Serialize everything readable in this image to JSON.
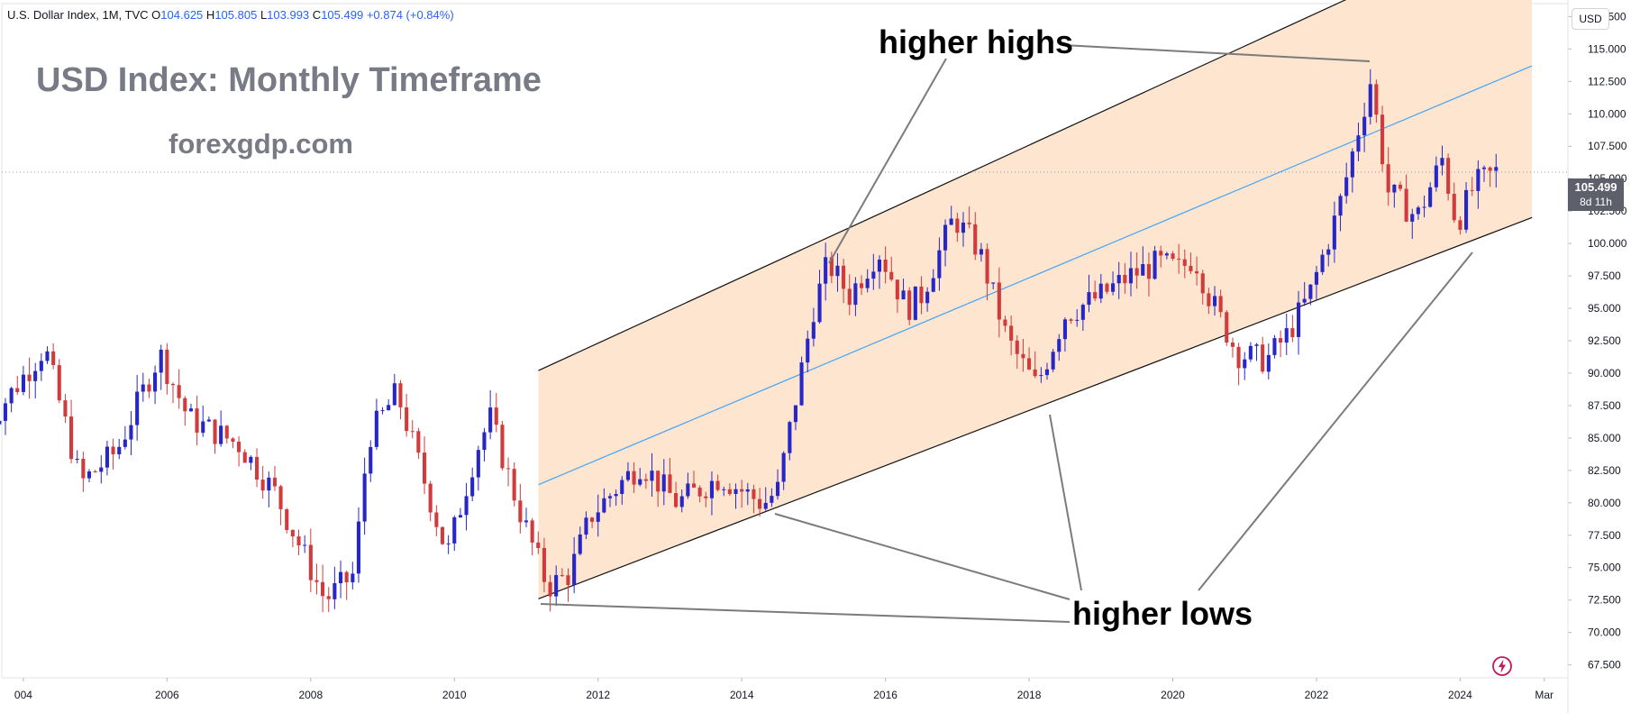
{
  "header": {
    "instrument": "U.S. Dollar Index, 1M, TVC",
    "o_label": "O",
    "o_value": "104.625",
    "h_label": "H",
    "h_value": "105.805",
    "l_label": "L",
    "l_value": "103.993",
    "c_label": "C",
    "c_value": "105.499",
    "change": "+0.874 (+0.84%)"
  },
  "overlay": {
    "title": "USD Index: Monthly Timeframe",
    "site": "forexgdp.com",
    "higher_highs": "higher highs",
    "higher_lows": "higher lows"
  },
  "price_scale": {
    "currency": "USD",
    "last_price": "105.499",
    "countdown": "8d 11h"
  },
  "colors": {
    "up": "#2727c8",
    "down": "#d23b3b",
    "channel_fill": "#fde5d0",
    "midline": "#42a5f5"
  },
  "icons": {
    "flash": "lightning-bolt-icon"
  },
  "chart_data": {
    "type": "candlestick",
    "ylim": [
      66.5,
      118.5
    ],
    "y_ticks": [
      67.5,
      70.0,
      72.5,
      75.0,
      77.5,
      80.0,
      82.5,
      85.0,
      87.5,
      90.0,
      92.5,
      95.0,
      97.5,
      100.0,
      102.5,
      105.0,
      107.5,
      110.0,
      112.5,
      115.0,
      117.5
    ],
    "y_tick_labels": [
      "67.500",
      "70.000",
      "72.500",
      "75.000",
      "77.500",
      "80.000",
      "82.500",
      "85.000",
      "87.500",
      "90.000",
      "92.500",
      "95.000",
      "97.500",
      "100.000",
      "102.500",
      "105.000",
      "107.500",
      "110.000",
      "112.500",
      "115.000",
      "117.500"
    ],
    "x_ticks": [
      {
        "label": "004",
        "t": 2004.0
      },
      {
        "label": "2006",
        "t": 2006.0
      },
      {
        "label": "2008",
        "t": 2008.0
      },
      {
        "label": "2010",
        "t": 2010.0
      },
      {
        "label": "2012",
        "t": 2012.0
      },
      {
        "label": "2014",
        "t": 2014.0
      },
      {
        "label": "2016",
        "t": 2016.0
      },
      {
        "label": "2018",
        "t": 2018.0
      },
      {
        "label": "2020",
        "t": 2020.0
      },
      {
        "label": "2022",
        "t": 2022.0
      },
      {
        "label": "2024",
        "t": 2024.0
      },
      {
        "label": "Mar",
        "t": 2025.17
      }
    ],
    "last_price": 105.499,
    "channel": {
      "upper": [
        [
          2011.17,
          90.2
        ],
        [
          2025.0,
          125.4
        ]
      ],
      "lower": [
        [
          2011.17,
          72.6
        ],
        [
          2025.0,
          102.0
        ]
      ],
      "midline": [
        [
          2011.17,
          81.4
        ],
        [
          2025.0,
          113.7
        ]
      ]
    },
    "anchors": [
      {
        "t": 2003.5,
        "v": 86.0
      },
      {
        "t": 2004.3,
        "v": 92.0
      },
      {
        "t": 2004.8,
        "v": 81.5
      },
      {
        "t": 2005.3,
        "v": 84.0
      },
      {
        "t": 2005.9,
        "v": 91.5
      },
      {
        "t": 2006.3,
        "v": 86.5
      },
      {
        "t": 2007.0,
        "v": 84.5
      },
      {
        "t": 2007.5,
        "v": 80.8
      },
      {
        "t": 2008.2,
        "v": 72.5
      },
      {
        "t": 2008.6,
        "v": 74.5
      },
      {
        "t": 2008.8,
        "v": 85.0
      },
      {
        "t": 2009.2,
        "v": 88.5
      },
      {
        "t": 2009.9,
        "v": 76.0
      },
      {
        "t": 2010.3,
        "v": 84.0
      },
      {
        "t": 2010.5,
        "v": 86.5
      },
      {
        "t": 2010.9,
        "v": 79.5
      },
      {
        "t": 2011.3,
        "v": 73.5
      },
      {
        "t": 2011.6,
        "v": 74.5
      },
      {
        "t": 2011.9,
        "v": 79.0
      },
      {
        "t": 2012.4,
        "v": 82.0
      },
      {
        "t": 2012.6,
        "v": 83.0
      },
      {
        "t": 2013.1,
        "v": 80.0
      },
      {
        "t": 2013.7,
        "v": 82.0
      },
      {
        "t": 2014.3,
        "v": 79.9
      },
      {
        "t": 2014.5,
        "v": 81.0
      },
      {
        "t": 2015.0,
        "v": 95.0
      },
      {
        "t": 2015.2,
        "v": 98.5
      },
      {
        "t": 2015.5,
        "v": 96.0
      },
      {
        "t": 2015.9,
        "v": 99.5
      },
      {
        "t": 2016.3,
        "v": 95.0
      },
      {
        "t": 2016.5,
        "v": 96.0
      },
      {
        "t": 2016.95,
        "v": 102.0
      },
      {
        "t": 2017.3,
        "v": 99.5
      },
      {
        "t": 2017.7,
        "v": 92.5
      },
      {
        "t": 2018.1,
        "v": 89.0
      },
      {
        "t": 2018.5,
        "v": 94.5
      },
      {
        "t": 2019.0,
        "v": 96.0
      },
      {
        "t": 2019.4,
        "v": 97.5
      },
      {
        "t": 2019.8,
        "v": 98.5
      },
      {
        "t": 2020.1,
        "v": 98.0
      },
      {
        "t": 2020.3,
        "v": 99.0
      },
      {
        "t": 2020.5,
        "v": 96.0
      },
      {
        "t": 2020.9,
        "v": 91.5
      },
      {
        "t": 2021.3,
        "v": 91.0
      },
      {
        "t": 2021.6,
        "v": 93.0
      },
      {
        "t": 2021.9,
        "v": 96.0
      },
      {
        "t": 2022.3,
        "v": 102.5
      },
      {
        "t": 2022.75,
        "v": 112.5
      },
      {
        "t": 2023.0,
        "v": 104.0
      },
      {
        "t": 2023.4,
        "v": 102.0
      },
      {
        "t": 2023.75,
        "v": 106.5
      },
      {
        "t": 2023.95,
        "v": 101.5
      },
      {
        "t": 2024.2,
        "v": 104.5
      },
      {
        "t": 2024.5,
        "v": 105.5
      }
    ]
  }
}
